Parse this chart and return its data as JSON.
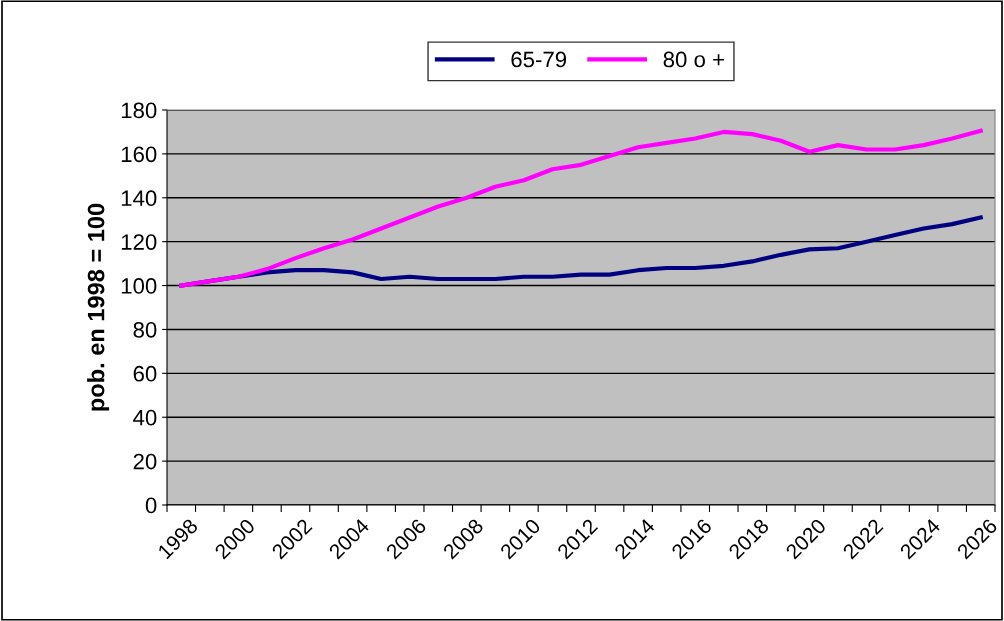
{
  "chart_data": {
    "type": "line",
    "ylabel": "pob. en 1998 = 100",
    "categories": [
      "1998",
      null,
      "2000",
      null,
      "2002",
      null,
      "2004",
      null,
      "2006",
      null,
      "2008",
      null,
      "2010",
      null,
      "2012",
      null,
      "2014",
      null,
      "2016",
      null,
      "2018",
      null,
      "2020",
      null,
      "2022",
      null,
      "2024",
      null,
      "2026"
    ],
    "series": [
      {
        "name": "65-79",
        "color": "#000080",
        "values": [
          100,
          102,
          104,
          106,
          107,
          107,
          106,
          103,
          104,
          103,
          103,
          103,
          104,
          104,
          105,
          105,
          107,
          108,
          108,
          109,
          111,
          114,
          116.5,
          117,
          120,
          123,
          126,
          128,
          131
        ]
      },
      {
        "name": "80 o +",
        "color": "#ff00ff",
        "values": [
          100,
          102,
          104,
          107.5,
          112.5,
          117,
          121,
          126,
          131,
          136,
          140,
          145,
          148,
          153,
          155,
          159,
          163,
          165,
          167,
          170,
          169,
          166,
          161,
          164,
          162,
          162,
          164,
          167,
          170.5
        ]
      }
    ],
    "ylim": [
      0,
      180
    ],
    "yticks": [
      0,
      20,
      40,
      60,
      80,
      100,
      120,
      140,
      160,
      180
    ],
    "grid": "y",
    "legend": "top",
    "marker": "none",
    "line_style": "solid"
  }
}
